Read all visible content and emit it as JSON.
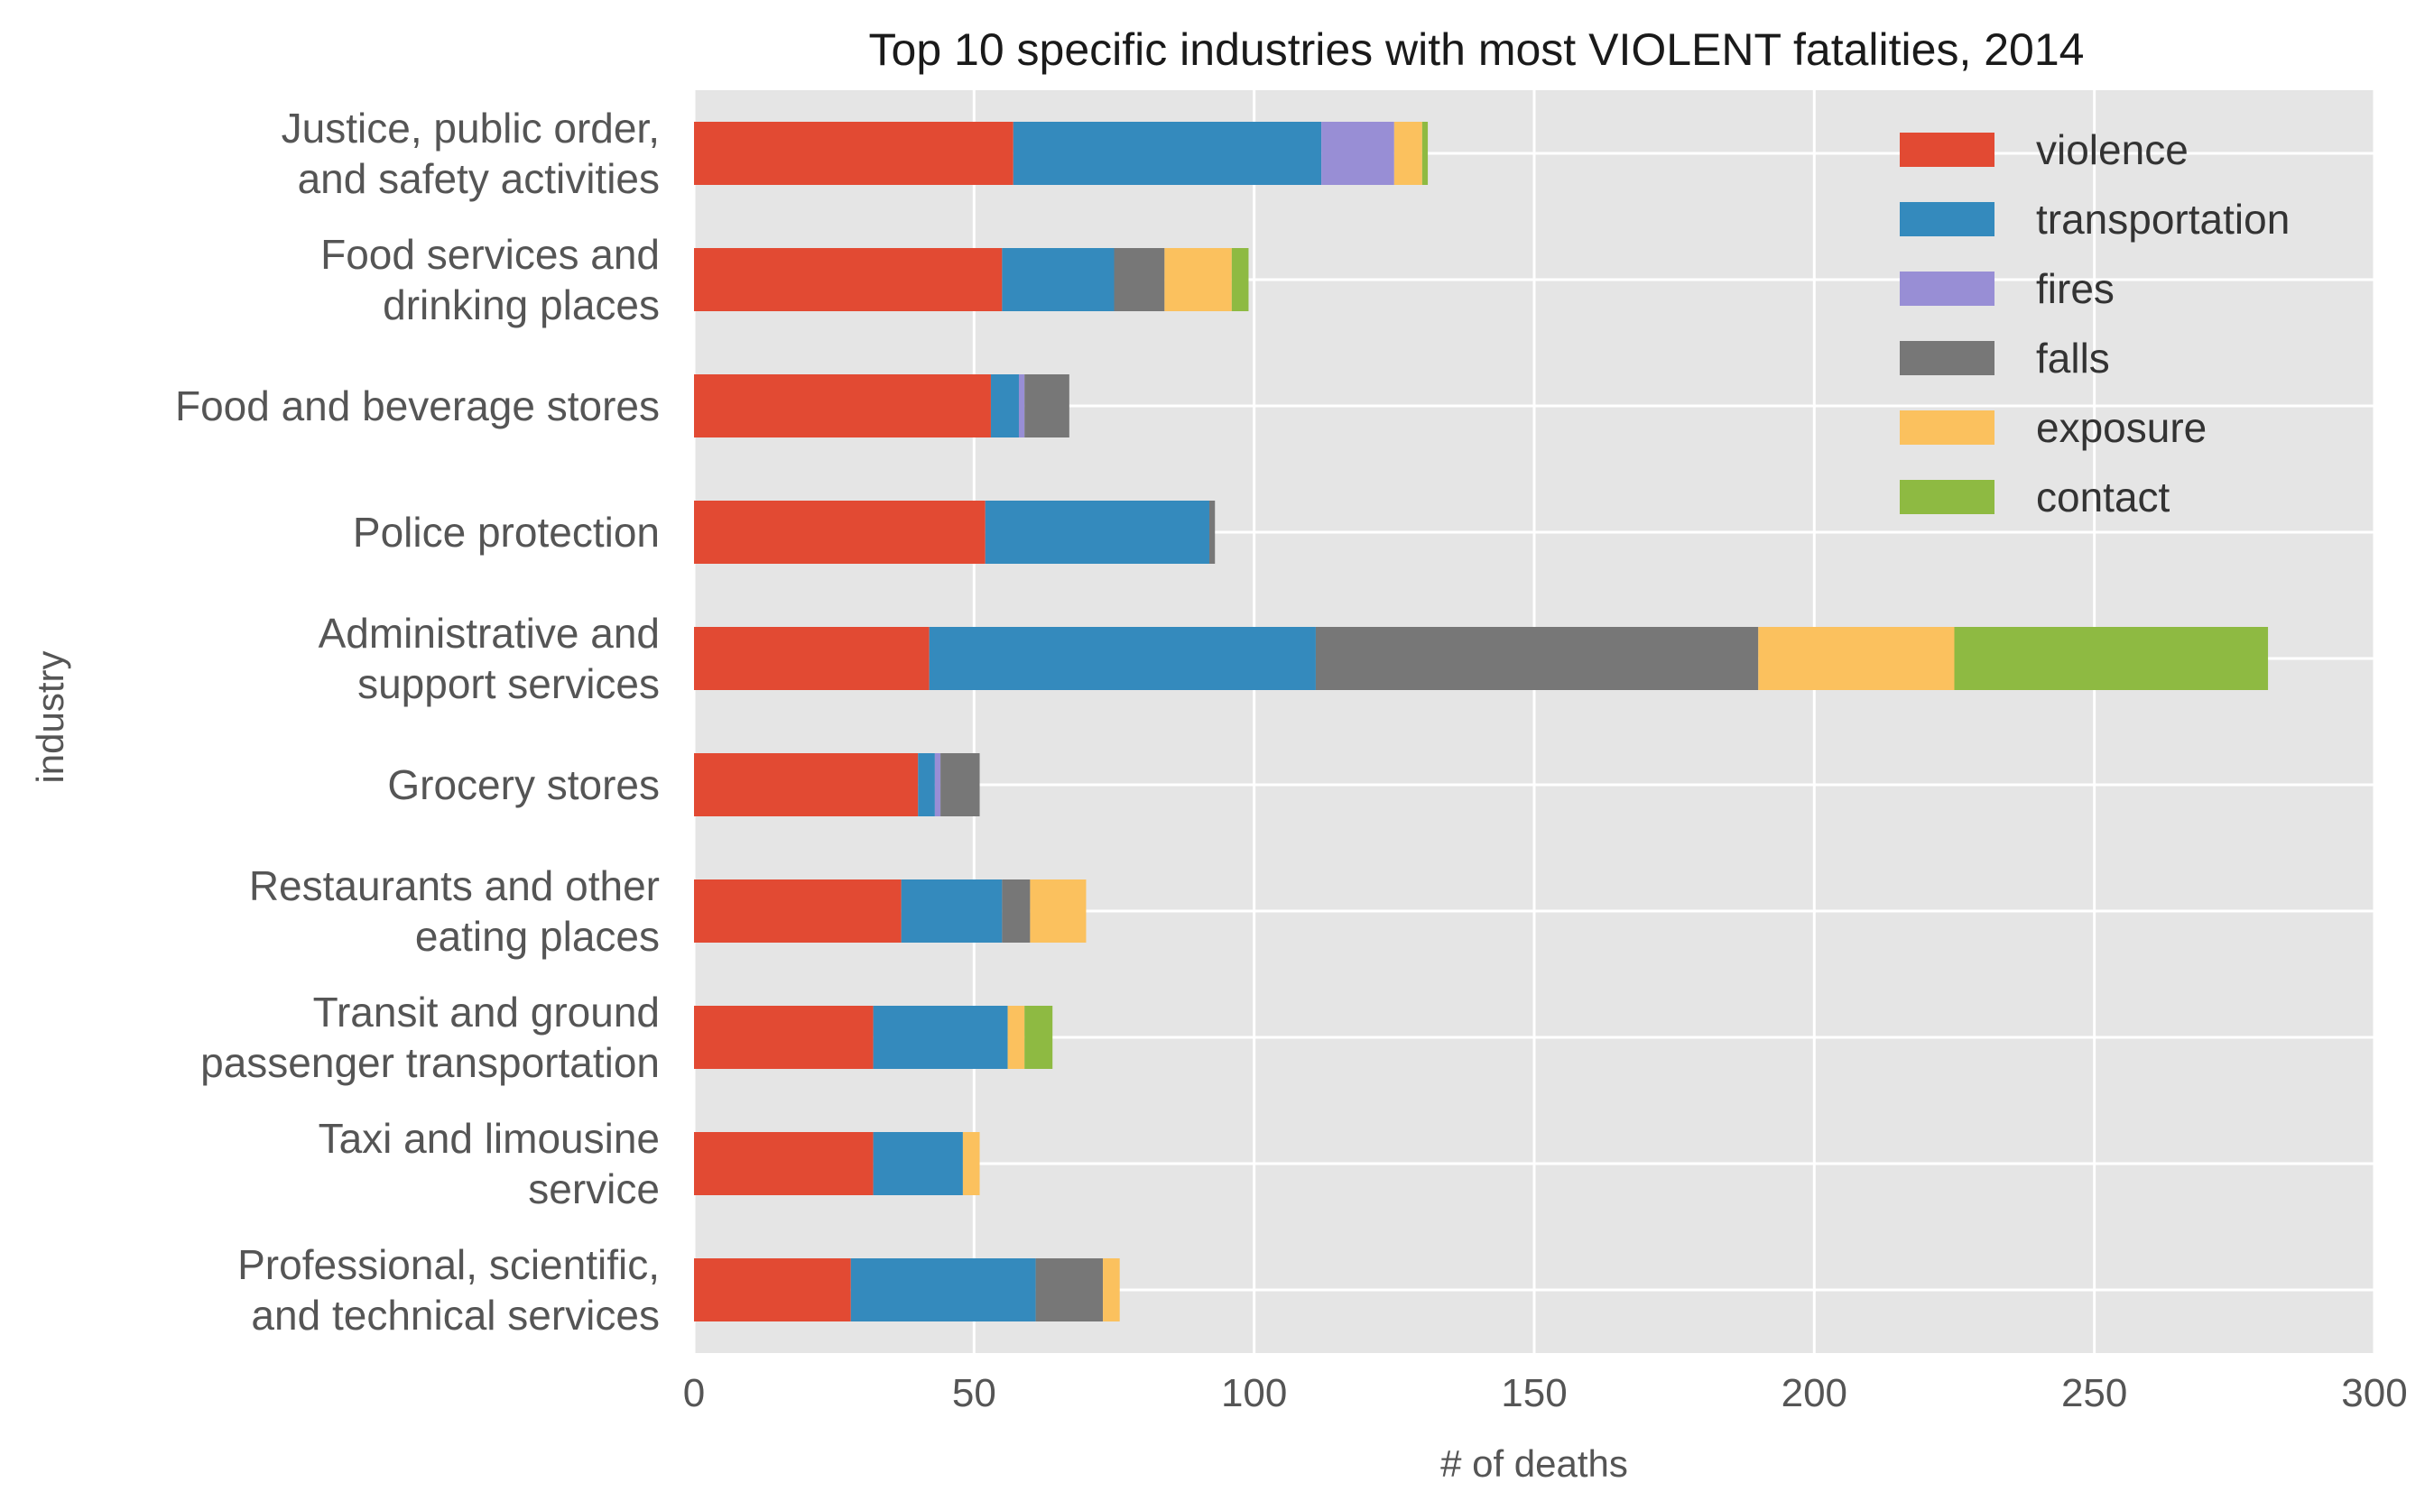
{
  "chart_data": {
    "type": "bar",
    "orientation": "horizontal",
    "stacked": true,
    "title": "Top 10 specific industries with most VIOLENT fatalities, 2014",
    "xlabel": "# of deaths",
    "ylabel": "industry",
    "xlim": [
      0,
      300
    ],
    "xticks": [
      "0",
      "50",
      "100",
      "150",
      "200",
      "250",
      "300"
    ],
    "grid": true,
    "legend_position": "top-right",
    "categories": [
      [
        "Professional, scientific,",
        "and technical services"
      ],
      [
        "Taxi and limousine",
        "service"
      ],
      [
        "Transit and ground",
        "passenger transportation"
      ],
      [
        "Restaurants and other",
        "eating places"
      ],
      [
        "Grocery stores"
      ],
      [
        "Administrative and",
        "support services"
      ],
      [
        "Police protection"
      ],
      [
        "Food and beverage stores"
      ],
      [
        "Food services and",
        "drinking places"
      ],
      [
        "Justice, public order,",
        "and safety activities"
      ]
    ],
    "series": [
      {
        "name": "violence",
        "color": "#E24A33",
        "values": [
          28,
          32,
          32,
          37,
          40,
          42,
          52,
          53,
          55,
          57
        ]
      },
      {
        "name": "transportation",
        "color": "#348ABD",
        "values": [
          33,
          16,
          24,
          18,
          3,
          69,
          40,
          5,
          20,
          55
        ]
      },
      {
        "name": "fires",
        "color": "#988ED5",
        "values": [
          0,
          0,
          0,
          0,
          1,
          0,
          0,
          1,
          0,
          13
        ]
      },
      {
        "name": "falls",
        "color": "#777777",
        "values": [
          12,
          0,
          0,
          5,
          7,
          79,
          1,
          8,
          9,
          0
        ]
      },
      {
        "name": "exposure",
        "color": "#FBC15E",
        "values": [
          3,
          3,
          3,
          10,
          0,
          35,
          0,
          0,
          12,
          5
        ]
      },
      {
        "name": "contact",
        "color": "#8EBA42",
        "values": [
          0,
          0,
          5,
          0,
          0,
          56,
          0,
          0,
          3,
          1
        ]
      }
    ]
  }
}
